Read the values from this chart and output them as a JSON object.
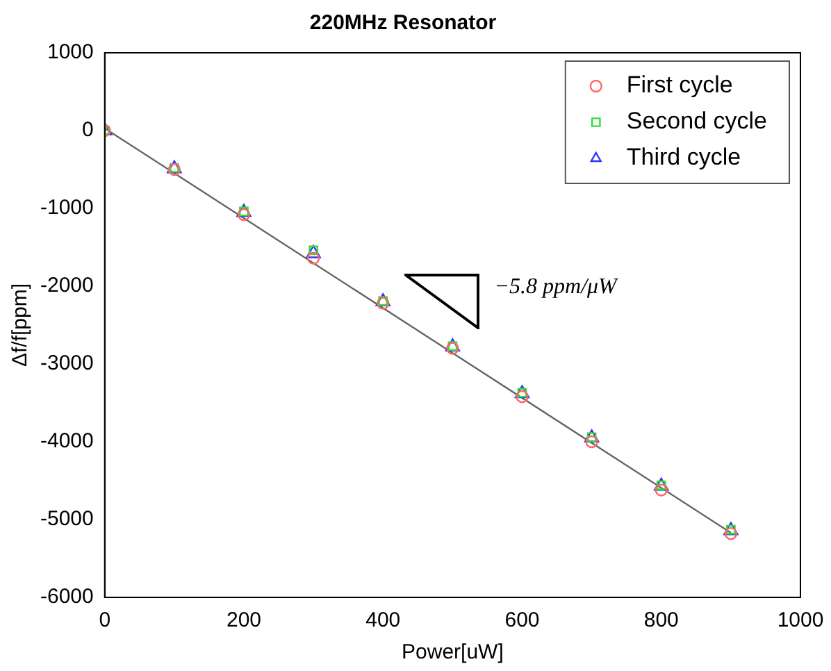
{
  "chart_data": {
    "type": "scatter",
    "title": "220MHz Resonator",
    "xlabel": "Power[uW]",
    "ylabel": "Δf/f[ppm]",
    "xlim": [
      0,
      1000
    ],
    "xticks": [
      0,
      200,
      400,
      600,
      800,
      1000
    ],
    "ylim": [
      -6000,
      1000
    ],
    "yticks": [
      -6000,
      -5000,
      -4000,
      -3000,
      -2000,
      -1000,
      0,
      1000
    ],
    "x": [
      0,
      100,
      200,
      300,
      400,
      500,
      600,
      700,
      800,
      900
    ],
    "legend": "top right",
    "grid": false,
    "annotations": [
      "−5.8 ppm/μW"
    ],
    "series": [
      {
        "name": "First cycle",
        "color": "#ff6666",
        "marker": "circle",
        "values": [
          0,
          -500,
          -1080,
          -1640,
          -2220,
          -2800,
          -3420,
          -4000,
          -4620,
          -5180
        ]
      },
      {
        "name": "Second cycle",
        "color": "#33dd33",
        "marker": "square",
        "values": [
          0,
          -480,
          -1040,
          -1540,
          -2190,
          -2770,
          -3370,
          -3940,
          -4560,
          -5130
        ]
      },
      {
        "name": "Third cycle",
        "color": "#3333ff",
        "marker": "triangle",
        "values": [
          0,
          -490,
          -1050,
          -1580,
          -2200,
          -2780,
          -3380,
          -3950,
          -4570,
          -5140
        ]
      },
      {
        "type": "line",
        "color": "#666666",
        "marker": "none",
        "x": [
          0,
          900
        ],
        "values": [
          30,
          -5170
        ]
      }
    ]
  }
}
